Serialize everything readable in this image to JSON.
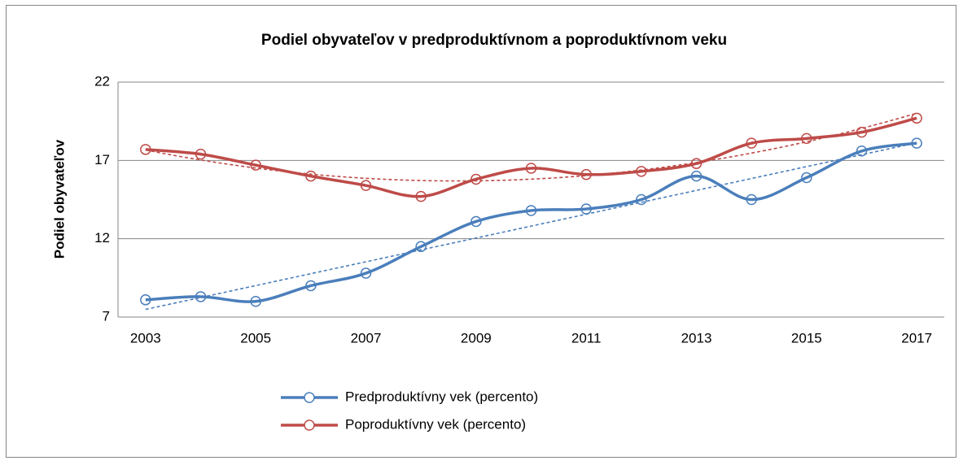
{
  "chart_data": {
    "type": "line",
    "title": "Podiel obyvateľov v predproduktívnom a poproduktívnom veku",
    "y_label": "Podiel obyvateľov",
    "x": [
      2003,
      2004,
      2005,
      2006,
      2007,
      2008,
      2009,
      2010,
      2011,
      2012,
      2013,
      2014,
      2015,
      2016,
      2017
    ],
    "xlim": [
      2002.5,
      2017.5
    ],
    "xticks": [
      2003,
      2005,
      2007,
      2009,
      2011,
      2013,
      2015,
      2017
    ],
    "ylim": [
      7,
      22
    ],
    "yticks": [
      7,
      12,
      17,
      22
    ],
    "grid": true,
    "legend": "bottom",
    "series": [
      {
        "name": "Predproduktívny vek (percento)",
        "color": "#4a7ebb",
        "trend": "linear",
        "values": [
          8.1,
          8.3,
          8.0,
          9.0,
          9.8,
          11.5,
          13.1,
          13.8,
          13.9,
          14.5,
          16.0,
          14.5,
          15.9,
          17.6,
          18.1
        ]
      },
      {
        "name": "Poproduktívny vek (percento)",
        "color": "#be4b48",
        "trend": "polynomial",
        "values": [
          17.7,
          17.4,
          16.7,
          16.0,
          15.4,
          14.7,
          15.8,
          16.5,
          16.1,
          16.3,
          16.8,
          18.1,
          18.4,
          18.8,
          19.7
        ]
      }
    ]
  }
}
